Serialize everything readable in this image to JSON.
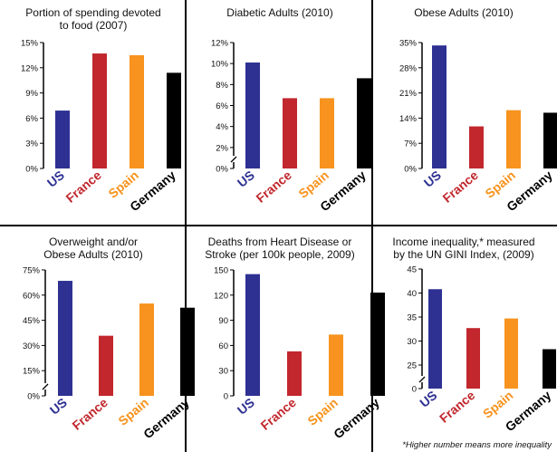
{
  "colors": {
    "US": "#2e3192",
    "France": "#c1272d",
    "Spain": "#f7931e",
    "Germany": "#000000",
    "divider": "#000000",
    "axis": "#000000"
  },
  "footnote": "*Higher number means more inequality",
  "chart_data": [
    {
      "type": "bar",
      "title": "Portion of spending devoted to food (2007)",
      "title_lines": [
        "Portion of spending devoted",
        "to food (2007)"
      ],
      "categories": [
        "US",
        "France",
        "Spain",
        "Germany"
      ],
      "values": [
        6.9,
        13.7,
        13.5,
        11.4
      ],
      "ylim": [
        0,
        15
      ],
      "yticks": [
        0,
        3,
        6,
        9,
        12,
        15
      ],
      "ytick_labels": [
        "0%",
        "3%",
        "6%",
        "9%",
        "12%",
        "15%"
      ],
      "axis_break": false
    },
    {
      "type": "bar",
      "title": "Diabetic Adults (2010)",
      "title_lines": [
        "Diabetic Adults (2010)"
      ],
      "categories": [
        "US",
        "France",
        "Spain",
        "Germany"
      ],
      "values": [
        10.1,
        6.7,
        6.7,
        8.6
      ],
      "ylim": [
        0,
        12
      ],
      "yticks": [
        0,
        2,
        4,
        6,
        8,
        10,
        12
      ],
      "ytick_labels": [
        "0%",
        "2%",
        "4%",
        "6%",
        "8%",
        "10%",
        "12%"
      ],
      "axis_break": true
    },
    {
      "type": "bar",
      "title": "Obese Adults (2010)",
      "title_lines": [
        "Obese Adults (2010)"
      ],
      "categories": [
        "US",
        "France",
        "Spain",
        "Germany"
      ],
      "values": [
        34.2,
        11.7,
        16.2,
        15.5
      ],
      "ylim": [
        0,
        35
      ],
      "yticks": [
        0,
        7,
        14,
        21,
        28,
        35
      ],
      "ytick_labels": [
        "0%",
        "7%",
        "14%",
        "21%",
        "28%",
        "35%"
      ],
      "axis_break": false
    },
    {
      "type": "bar",
      "title": "Overweight and/or Obese Adults (2010)",
      "title_lines": [
        "Overweight and/or",
        "Obese Adults (2010)"
      ],
      "categories": [
        "US",
        "France",
        "Spain",
        "Germany"
      ],
      "values": [
        68.5,
        35.8,
        55,
        52.5
      ],
      "ylim": [
        0,
        75
      ],
      "yticks": [
        0,
        15,
        30,
        45,
        60,
        75
      ],
      "ytick_labels": [
        "0%",
        "15%",
        "30%",
        "45%",
        "60%",
        "75%"
      ],
      "axis_break": true
    },
    {
      "type": "bar",
      "title": "Deaths from Heart Disease or Stroke (per 100k people, 2009)",
      "title_lines": [
        "Deaths from Heart Disease or",
        "Stroke (per 100k people, 2009)"
      ],
      "categories": [
        "US",
        "France",
        "Spain",
        "Germany"
      ],
      "values": [
        145,
        53,
        73,
        123
      ],
      "ylim": [
        0,
        150
      ],
      "yticks": [
        0,
        30,
        60,
        90,
        120,
        150
      ],
      "ytick_labels": [
        "0",
        "30",
        "60",
        "90",
        "120",
        "150"
      ],
      "axis_break": false
    },
    {
      "type": "bar",
      "title": "Income inequality,* measured by the UN GINI Index, (2009)",
      "title_lines": [
        "Income inequality,* measured",
        "by the UN GINI Index, (2009)"
      ],
      "categories": [
        "US",
        "France",
        "Spain",
        "Germany"
      ],
      "values": [
        40.8,
        32.7,
        34.7,
        28.3
      ],
      "ylim": [
        20,
        45
      ],
      "yticks": [
        0,
        25,
        30,
        35,
        40,
        45
      ],
      "ytick_labels": [
        "0",
        "25",
        "30",
        "35",
        "40",
        "45"
      ],
      "axis_break": true,
      "break_lower": 0
    }
  ]
}
